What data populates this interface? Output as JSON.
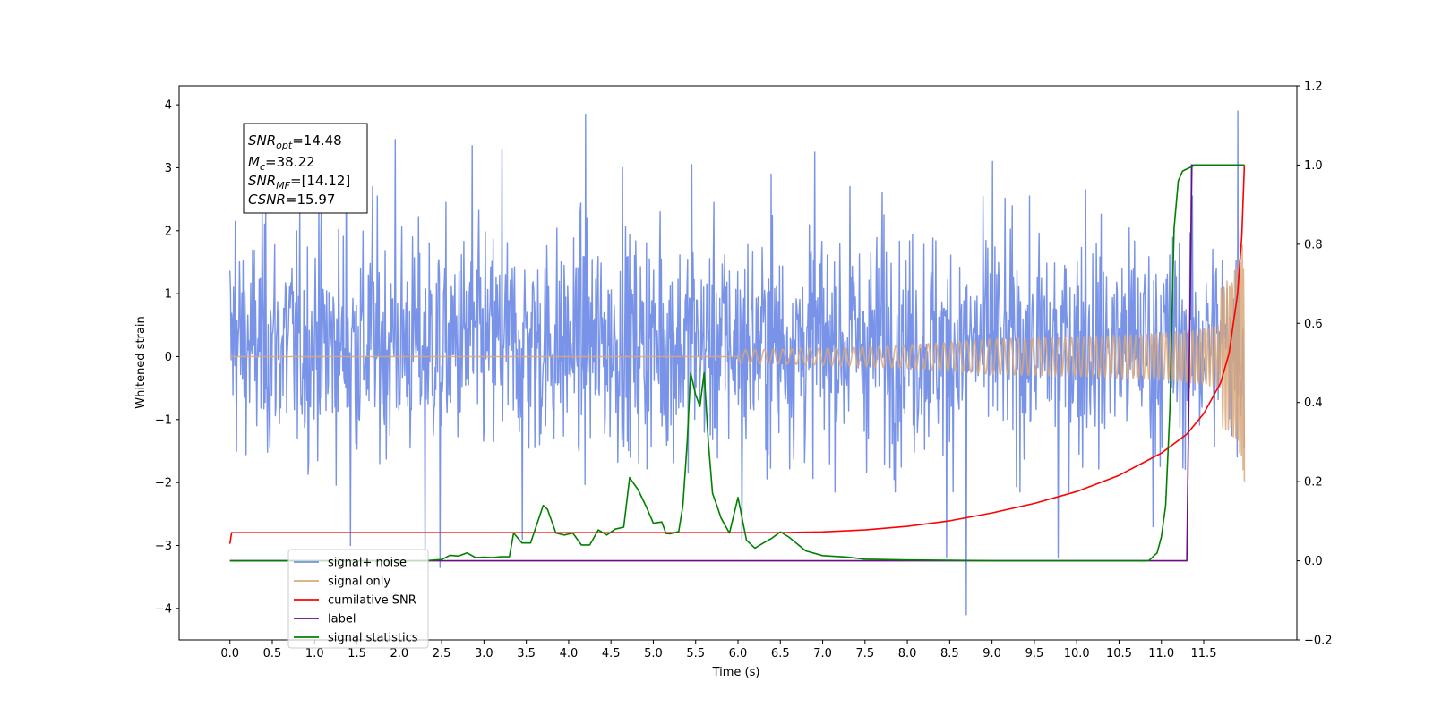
{
  "chart_data": {
    "type": "line",
    "xlabel": "Time (s)",
    "ylabel": "Whitened strain",
    "xlim": [
      -0.6,
      12.6
    ],
    "ylim": [
      -4.5,
      4.3
    ],
    "y2lim": [
      -0.2,
      1.2
    ],
    "x_ticks": [
      0.0,
      0.5,
      1.0,
      1.5,
      2.0,
      2.5,
      3.0,
      3.5,
      4.0,
      4.5,
      5.0,
      5.5,
      6.0,
      6.5,
      7.0,
      7.5,
      8.0,
      8.5,
      9.0,
      9.5,
      10.0,
      10.5,
      11.0,
      11.5
    ],
    "x_tick_labels": [
      "0.0",
      "0.5",
      "1.0",
      "1.5",
      "2.0",
      "2.5",
      "3.0",
      "3.5",
      "4.0",
      "4.5",
      "5.0",
      "5.5",
      "6.0",
      "6.5",
      "7.0",
      "7.5",
      "8.0",
      "8.5",
      "9.0",
      "9.5",
      "10.0",
      "10.5",
      "11.0",
      "11.5"
    ],
    "y_ticks": [
      -4,
      -3,
      -2,
      -1,
      0,
      1,
      2,
      3,
      4
    ],
    "y_tick_labels": [
      "−4",
      "−3",
      "−2",
      "−1",
      "0",
      "1",
      "2",
      "3",
      "4"
    ],
    "y2_ticks": [
      -0.2,
      0.0,
      0.2,
      0.4,
      0.6,
      0.8,
      1.0,
      1.2
    ],
    "y2_tick_labels": [
      "−0.2",
      "0.0",
      "0.2",
      "0.4",
      "0.6",
      "0.8",
      "1.0",
      "1.2"
    ],
    "grid": false,
    "legend_position": "lower-left",
    "annotation": {
      "snr_opt": {
        "base": "SNR",
        "sub": "opt",
        "value": "=14.48"
      },
      "mc": {
        "base": "M",
        "sub": "c",
        "value": "=38.22"
      },
      "snr_mf": {
        "base": "SNR",
        "sub": "MF",
        "value": "=[14.12]"
      },
      "csnr": {
        "base": "CSNR",
        "sub": "",
        "value": "=15.97"
      }
    },
    "series": [
      {
        "name": "signal+ noise",
        "color": "#7893e8",
        "axis": "left",
        "kind": "noise",
        "t_range": [
          0.0,
          11.98
        ],
        "noise_band": [
          -1.55,
          1.95
        ],
        "extreme_peaks": [
          {
            "x": 0.06,
            "y": 2.15
          },
          {
            "x": 0.42,
            "y": 2.35
          },
          {
            "x": 1.05,
            "y": 2.4
          },
          {
            "x": 1.37,
            "y": 3.4
          },
          {
            "x": 1.42,
            "y": -3.0
          },
          {
            "x": 1.68,
            "y": 2.7
          },
          {
            "x": 1.95,
            "y": 3.45
          },
          {
            "x": 2.3,
            "y": -3.2
          },
          {
            "x": 2.48,
            "y": -3.35
          },
          {
            "x": 2.86,
            "y": 3.35
          },
          {
            "x": 3.21,
            "y": 3.3
          },
          {
            "x": 3.45,
            "y": -2.9
          },
          {
            "x": 4.2,
            "y": 3.85
          },
          {
            "x": 4.63,
            "y": 3.0
          },
          {
            "x": 5.08,
            "y": 2.3
          },
          {
            "x": 5.45,
            "y": 3.05
          },
          {
            "x": 6.04,
            "y": -2.9
          },
          {
            "x": 6.39,
            "y": 2.9
          },
          {
            "x": 6.9,
            "y": 3.25
          },
          {
            "x": 7.32,
            "y": 2.7
          },
          {
            "x": 7.7,
            "y": 2.6
          },
          {
            "x": 8.46,
            "y": -3.2
          },
          {
            "x": 8.69,
            "y": -4.1
          },
          {
            "x": 9.0,
            "y": 3.1
          },
          {
            "x": 9.78,
            "y": -3.2
          },
          {
            "x": 10.1,
            "y": 2.65
          },
          {
            "x": 10.9,
            "y": -2.7
          },
          {
            "x": 11.35,
            "y": 3.05
          },
          {
            "x": 11.9,
            "y": 3.9
          }
        ]
      },
      {
        "name": "signal only",
        "color": "#d9a87a",
        "axis": "left",
        "kind": "chirp",
        "t_range": [
          0.0,
          11.98
        ],
        "baseline": 0.0,
        "end_amplitude": 1.0
      },
      {
        "name": "cumilative SNR",
        "color": "#ff0000",
        "axis": "right",
        "kind": "line",
        "x": [
          0.0,
          0.02,
          1.0,
          3.0,
          5.0,
          6.5,
          7.0,
          7.5,
          8.0,
          8.5,
          9.0,
          9.5,
          10.0,
          10.5,
          11.0,
          11.3,
          11.5,
          11.7,
          11.8,
          11.9,
          11.95,
          11.98
        ],
        "y": [
          0.043,
          0.071,
          0.071,
          0.071,
          0.071,
          0.071,
          0.073,
          0.078,
          0.087,
          0.101,
          0.121,
          0.145,
          0.175,
          0.216,
          0.272,
          0.32,
          0.372,
          0.45,
          0.525,
          0.675,
          0.82,
          1.0
        ]
      },
      {
        "name": "label",
        "color": "#6a0d83",
        "axis": "right",
        "kind": "line",
        "x": [
          0.0,
          11.3,
          11.36,
          11.98
        ],
        "y": [
          0.0,
          0.0,
          1.0,
          1.0
        ]
      },
      {
        "name": "signal statistics",
        "color": "#008000",
        "axis": "right",
        "kind": "line",
        "x": [
          0.0,
          2.3,
          2.5,
          2.6,
          2.7,
          2.8,
          2.9,
          3.0,
          3.1,
          3.2,
          3.3,
          3.35,
          3.45,
          3.55,
          3.7,
          3.75,
          3.85,
          3.95,
          4.05,
          4.15,
          4.25,
          4.35,
          4.45,
          4.55,
          4.65,
          4.72,
          4.82,
          4.92,
          5.0,
          5.1,
          5.15,
          5.2,
          5.3,
          5.35,
          5.4,
          5.44,
          5.5,
          5.55,
          5.6,
          5.65,
          5.7,
          5.75,
          5.8,
          5.9,
          6.0,
          6.1,
          6.2,
          6.3,
          6.4,
          6.5,
          6.6,
          6.8,
          7.0,
          7.3,
          7.5,
          8.0,
          8.5,
          9.0,
          10.0,
          10.85,
          10.95,
          11.0,
          11.05,
          11.1,
          11.15,
          11.2,
          11.25,
          11.3,
          11.4,
          11.5,
          11.98
        ],
        "y": [
          0.0,
          0.0,
          0.003,
          0.014,
          0.012,
          0.02,
          0.008,
          0.009,
          0.008,
          0.01,
          0.01,
          0.07,
          0.045,
          0.045,
          0.14,
          0.13,
          0.07,
          0.065,
          0.07,
          0.04,
          0.04,
          0.078,
          0.065,
          0.08,
          0.085,
          0.21,
          0.18,
          0.135,
          0.095,
          0.098,
          0.069,
          0.068,
          0.074,
          0.14,
          0.3,
          0.475,
          0.42,
          0.39,
          0.475,
          0.3,
          0.17,
          0.14,
          0.108,
          0.07,
          0.16,
          0.052,
          0.032,
          0.045,
          0.057,
          0.073,
          0.06,
          0.025,
          0.013,
          0.009,
          0.004,
          0.002,
          0.001,
          0.0,
          0.0,
          0.0,
          0.02,
          0.06,
          0.14,
          0.38,
          0.84,
          0.96,
          0.985,
          0.99,
          1.0,
          1.0,
          1.0
        ]
      }
    ]
  }
}
